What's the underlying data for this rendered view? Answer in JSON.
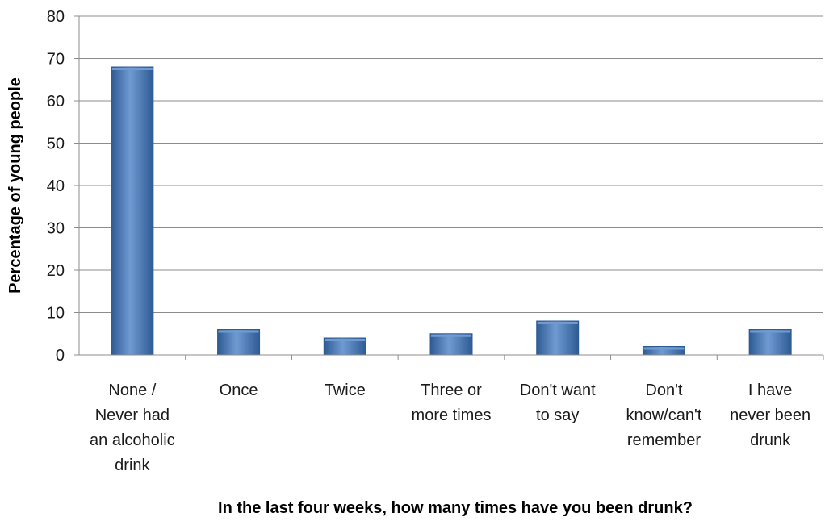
{
  "colors": {
    "bar_fill": "#4a7ebb",
    "bar_light": "#6f9ad2",
    "bar_dark": "#2f5b94",
    "grid": "#8c8c8c",
    "axis": "#8c8c8c"
  },
  "chart_data": {
    "type": "bar",
    "title": "",
    "xlabel": "In the last four weeks, how many times have you been drunk?",
    "ylabel": "Percentage of young people",
    "ylim": [
      0,
      80
    ],
    "yticks": [
      0,
      10,
      20,
      30,
      40,
      50,
      60,
      70,
      80
    ],
    "grid": true,
    "legend": "none",
    "categories": [
      [
        "None /",
        "Never had",
        "an alcoholic",
        "drink"
      ],
      [
        "Once"
      ],
      [
        "Twice"
      ],
      [
        "Three or",
        "more times"
      ],
      [
        "Don't want",
        "to say"
      ],
      [
        "Don't",
        "know/can't",
        "remember"
      ],
      [
        "I have",
        "never been",
        "drunk"
      ]
    ],
    "values": [
      68,
      6,
      4,
      5,
      8,
      2,
      6
    ]
  }
}
